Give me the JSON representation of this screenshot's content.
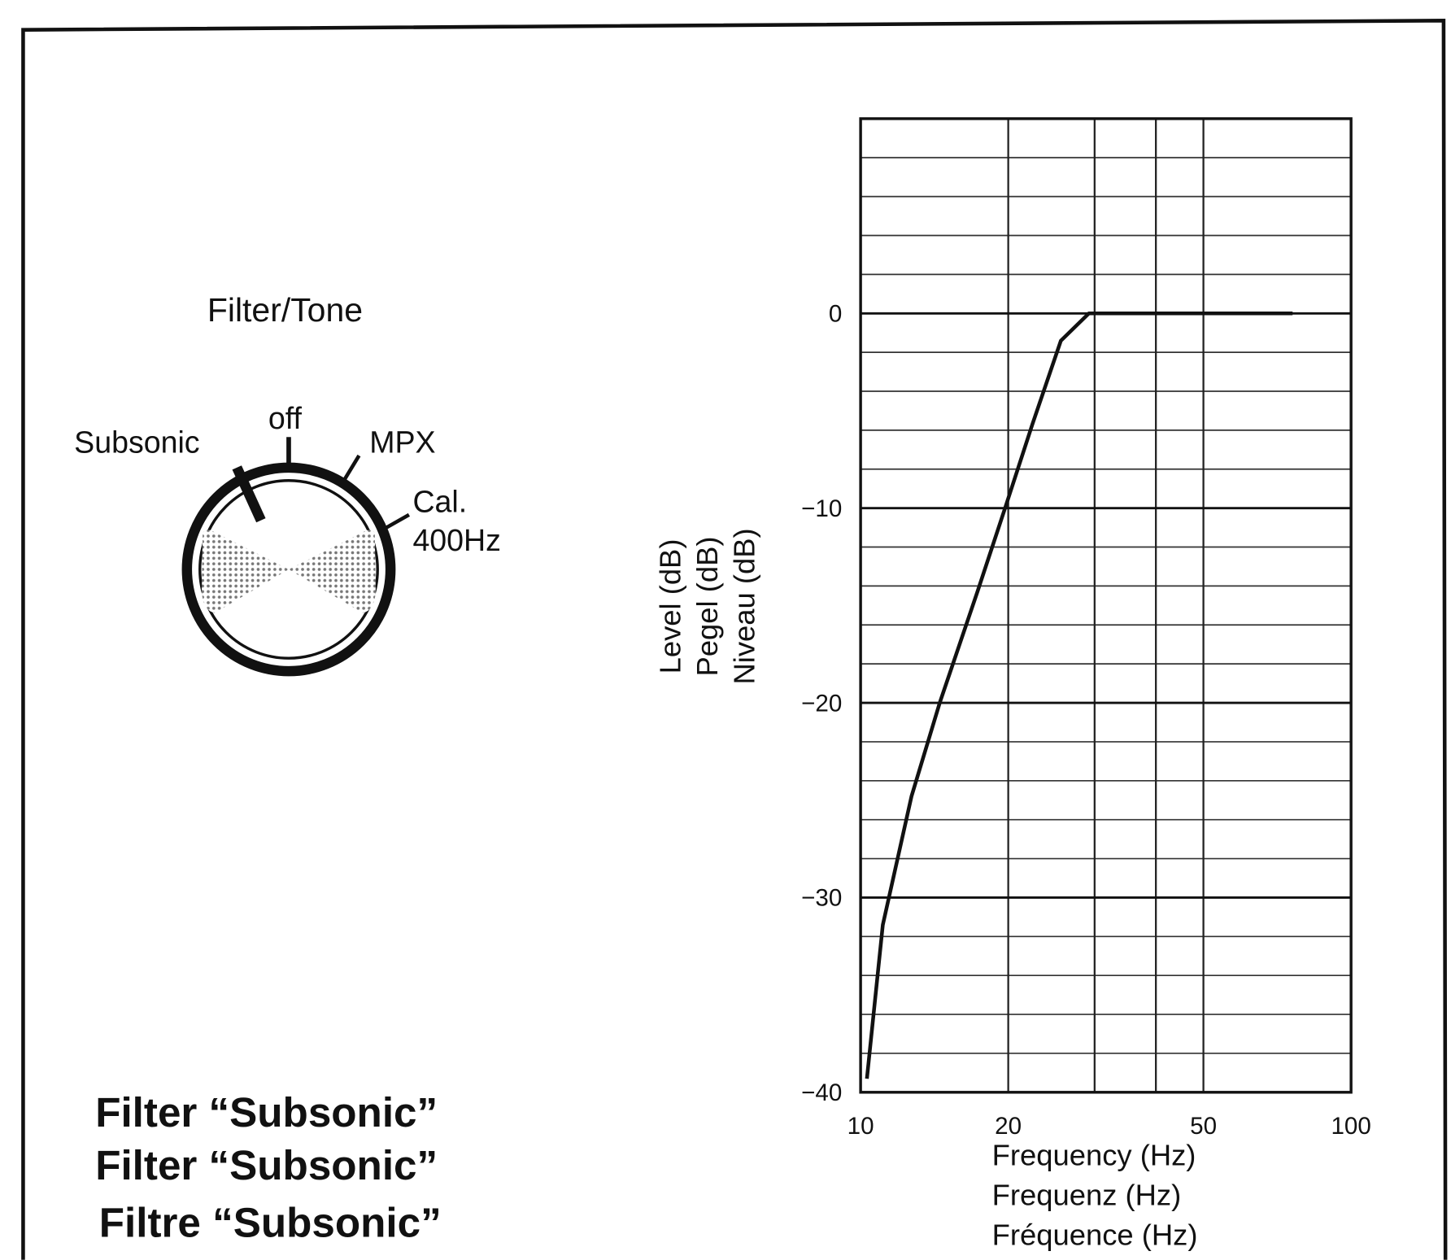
{
  "knob": {
    "title": "Filter/Tone",
    "positions": [
      "Subsonic",
      "off",
      "MPX",
      "Cal.",
      "400Hz"
    ]
  },
  "captions": [
    "Filter “Subsonic”",
    "Filter “Subsonic”",
    "Filtre “Subsonic”"
  ],
  "chart_data": {
    "type": "line",
    "xscale": "log",
    "color": "#111",
    "x": [
      10.3,
      11.1,
      12.7,
      14.5,
      17.3,
      19.7,
      22.4,
      25.6,
      29.2,
      76
    ],
    "values": [
      -39.3,
      -31.4,
      -24.8,
      -20,
      -14.3,
      -10,
      -5.7,
      -1.4,
      0,
      0
    ],
    "xlim": [
      10,
      100
    ],
    "xticks": [
      10,
      20,
      50,
      100
    ],
    "ylim": [
      -40,
      10
    ],
    "yticks": [
      0,
      {
        "value": -10,
        "label": "−10"
      },
      {
        "value": -20,
        "label": "−20"
      },
      {
        "value": -30,
        "label": "−30"
      },
      {
        "value": -40,
        "label": "−40"
      }
    ],
    "x_gridlines": [
      20,
      30,
      40,
      50
    ],
    "y_gridlines": [
      -38,
      -36,
      -34,
      -32,
      -28,
      -26,
      -24,
      -22,
      -18,
      -16,
      -14,
      -12,
      -8,
      -6,
      -4,
      -2,
      2,
      4,
      6,
      8
    ],
    "y_label": [
      "Level (dB)",
      "Pegel (dB)",
      "Niveau (dB)"
    ],
    "x_label": [
      "Frequency (Hz)",
      "Frequenz (Hz)",
      "Fréquence (Hz)"
    ]
  }
}
